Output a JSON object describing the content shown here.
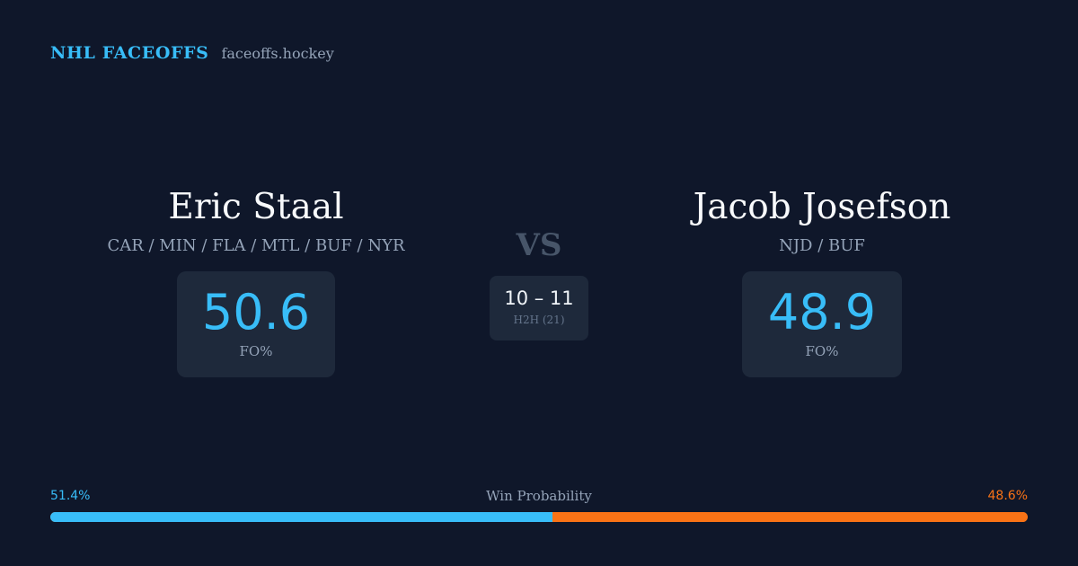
{
  "brand": {
    "name": "NHL FACEOFFS",
    "url": "faceoffs.hockey"
  },
  "player_left": {
    "name": "Eric Staal",
    "teams": "CAR / MIN / FLA / MTL / BUF / NYR",
    "fo_pct": "50.6",
    "fo_label": "FO%"
  },
  "player_right": {
    "name": "Jacob Josefson",
    "teams": "NJD / BUF",
    "fo_pct": "48.9",
    "fo_label": "FO%"
  },
  "matchup": {
    "vs_label": "VS",
    "h2h_score": "10 – 11",
    "h2h_label": "H2H (21)"
  },
  "win_probability": {
    "title": "Win Probability",
    "left_label": "51.4%",
    "right_label": "48.6%",
    "left_value": 51.4,
    "right_value": 48.6
  },
  "colors": {
    "background": "#0f172a",
    "card": "#1e293b",
    "accent_blue": "#38bdf8",
    "accent_orange": "#f97316",
    "muted": "#94a3b8"
  }
}
